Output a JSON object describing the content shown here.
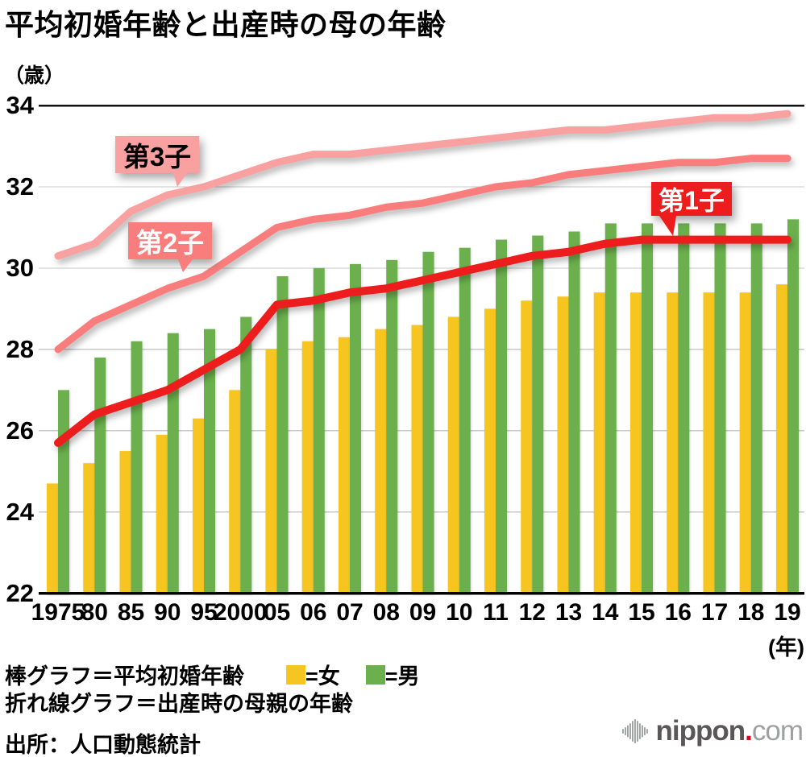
{
  "header": {
    "title": "平均初婚年齢と出産時の母の年齢"
  },
  "axes": {
    "y_unit": "（歳）",
    "x_unit": "(年)"
  },
  "chart_data": {
    "type": "bar+line",
    "title": "平均初婚年齢と出産時の母の年齢",
    "ylabel": "歳",
    "xlabel": "年",
    "ylim": [
      22,
      34
    ],
    "yticks": [
      22,
      24,
      26,
      28,
      30,
      32,
      34
    ],
    "grid": "horizontal",
    "categories": [
      "1975",
      "80",
      "85",
      "90",
      "95",
      "2000",
      "05",
      "06",
      "07",
      "08",
      "09",
      "10",
      "11",
      "12",
      "13",
      "14",
      "15",
      "16",
      "17",
      "18",
      "19"
    ],
    "bar_series": [
      {
        "name": "女",
        "color": "#F7C51F",
        "values": [
          24.7,
          25.2,
          25.5,
          25.9,
          26.3,
          27.0,
          28.0,
          28.2,
          28.3,
          28.5,
          28.6,
          28.8,
          29.0,
          29.2,
          29.3,
          29.4,
          29.4,
          29.4,
          29.4,
          29.4,
          29.6
        ]
      },
      {
        "name": "男",
        "color": "#6BB04D",
        "values": [
          27.0,
          27.8,
          28.2,
          28.4,
          28.5,
          28.8,
          29.8,
          30.0,
          30.1,
          30.2,
          30.4,
          30.5,
          30.7,
          30.8,
          30.9,
          31.1,
          31.1,
          31.1,
          31.1,
          31.1,
          31.2
        ]
      }
    ],
    "line_series": [
      {
        "name": "第1子",
        "color": "#ED1D1D",
        "width": 10,
        "values": [
          25.7,
          26.4,
          26.7,
          27.0,
          27.5,
          28.0,
          29.1,
          29.2,
          29.4,
          29.5,
          29.7,
          29.9,
          30.1,
          30.3,
          30.4,
          30.6,
          30.7,
          30.7,
          30.7,
          30.7,
          30.7
        ]
      },
      {
        "name": "第2子",
        "color": "#F97D7D",
        "width": 9,
        "values": [
          28.0,
          28.7,
          29.1,
          29.5,
          29.8,
          30.4,
          31.0,
          31.2,
          31.3,
          31.5,
          31.6,
          31.8,
          32.0,
          32.1,
          32.3,
          32.4,
          32.5,
          32.6,
          32.6,
          32.7,
          32.7
        ]
      },
      {
        "name": "第3子",
        "color": "#F9A0A0",
        "width": 9,
        "values": [
          30.3,
          30.6,
          31.4,
          31.8,
          32.0,
          32.3,
          32.6,
          32.8,
          32.8,
          32.9,
          33.0,
          33.1,
          33.2,
          33.3,
          33.4,
          33.4,
          33.5,
          33.6,
          33.7,
          33.7,
          33.8
        ]
      }
    ]
  },
  "annotations": [
    {
      "id": "first-child",
      "label": "第1子"
    },
    {
      "id": "second-child",
      "label": "第2子"
    },
    {
      "id": "third-child",
      "label": "第3子"
    }
  ],
  "legend": {
    "bar_label": "棒グラフ＝平均初婚年齢",
    "female_label": "=女",
    "male_label": "=男",
    "line_label": "折れ線グラフ＝出産時の母親の年齢",
    "female_color": "#F7C51F",
    "male_color": "#6BB04D"
  },
  "footer": {
    "source": "出所：人口動態統計",
    "logo": {
      "name": "nippon",
      "dot": ".",
      "tld": "com"
    }
  }
}
